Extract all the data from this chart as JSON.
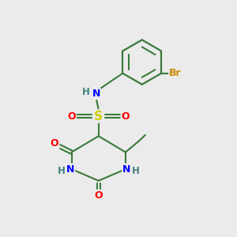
{
  "background_color": "#ebebeb",
  "atom_colors": {
    "C": "#000000",
    "N": "#0000ff",
    "O": "#ff0000",
    "S": "#cccc00",
    "Br": "#cc8800",
    "H": "#408080"
  },
  "bond_color": "#3a7a3a",
  "title": "",
  "figsize": [
    3.0,
    3.0
  ],
  "dpi": 100
}
